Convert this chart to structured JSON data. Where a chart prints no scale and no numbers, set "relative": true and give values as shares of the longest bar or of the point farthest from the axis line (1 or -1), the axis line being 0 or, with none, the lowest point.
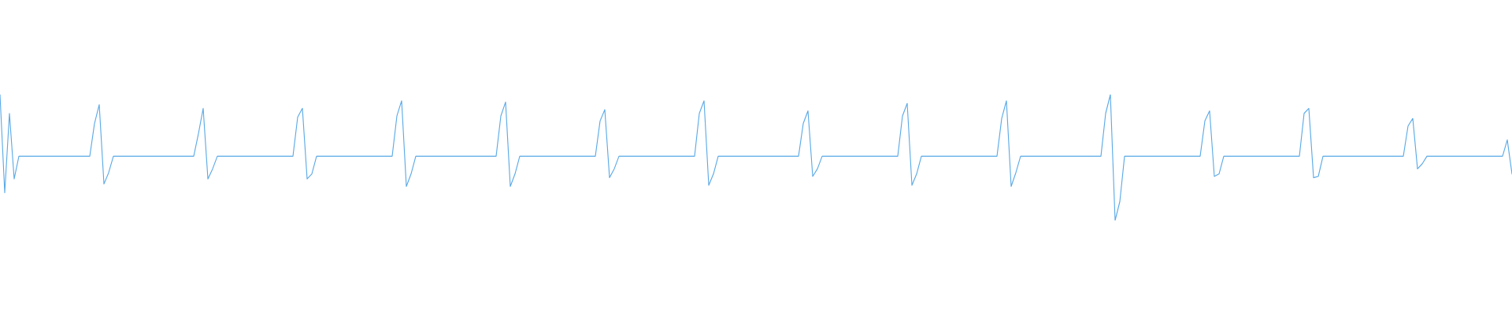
{
  "chart_data": {
    "type": "line",
    "relative": true,
    "color": "#5aa9e6",
    "categories": [
      null,
      null,
      null,
      null,
      null,
      null,
      null,
      null,
      null,
      null,
      null,
      null,
      null,
      null,
      null,
      null,
      null,
      null,
      null,
      null,
      null,
      null,
      null,
      null,
      null,
      null,
      null,
      null,
      null,
      null,
      null,
      null,
      null,
      null,
      null,
      null,
      null,
      null,
      null,
      null,
      null,
      null,
      null,
      null,
      null,
      null,
      null,
      null,
      null,
      null,
      null,
      null,
      null,
      null,
      null,
      null,
      null,
      null,
      null,
      null,
      null,
      null,
      null,
      null,
      null,
      null,
      null,
      null,
      null,
      null,
      null,
      null,
      null,
      null,
      null,
      null,
      null,
      null,
      null,
      null,
      null,
      null,
      null,
      null,
      null,
      null,
      null,
      null,
      null,
      null,
      null,
      null,
      null,
      null,
      null,
      null,
      null,
      null,
      null,
      null,
      null,
      null,
      null,
      null,
      null,
      null,
      null,
      null,
      null,
      null,
      null,
      null,
      null,
      null,
      null,
      null,
      null,
      null,
      null,
      null,
      null,
      null,
      null,
      null,
      null,
      null,
      null,
      null,
      null,
      null,
      null,
      null,
      null,
      null,
      null,
      null,
      null,
      null,
      null,
      null,
      null,
      null,
      null,
      null,
      null,
      null,
      null,
      null,
      null,
      null,
      null,
      null,
      null,
      null,
      null,
      null,
      null,
      null,
      null,
      null,
      null,
      null,
      null,
      null,
      null,
      null,
      null,
      null,
      null,
      null,
      null,
      null,
      null,
      null,
      null,
      null,
      null,
      null,
      null,
      null,
      null,
      null,
      null,
      null,
      null,
      null,
      null,
      null,
      null,
      null,
      null,
      null,
      null,
      null,
      null,
      null,
      null,
      null,
      null,
      null,
      null,
      null,
      null,
      null,
      null,
      null,
      null,
      null,
      null,
      null,
      null,
      null,
      null,
      null,
      null,
      null,
      null,
      null,
      null,
      null,
      null,
      null,
      null,
      null,
      null,
      null,
      null,
      null,
      null,
      null,
      null,
      null,
      null,
      null,
      null,
      null,
      null,
      null,
      null,
      null,
      null,
      null,
      null,
      null,
      null,
      null,
      null,
      null,
      null,
      null,
      null,
      null,
      null,
      null,
      null,
      null,
      null,
      null,
      null,
      null,
      null,
      null,
      null,
      null,
      null,
      null,
      null,
      null,
      null,
      null,
      null,
      null,
      null,
      null,
      null,
      null,
      null,
      null,
      null,
      null,
      null,
      null,
      null,
      null,
      null,
      null,
      null,
      null,
      null,
      null,
      null,
      null,
      null,
      null,
      null,
      null,
      null,
      null,
      null,
      null,
      null,
      null,
      null,
      null,
      null,
      null,
      null,
      null,
      null,
      null,
      null,
      null,
      null,
      null,
      null,
      null,
      null,
      null,
      null,
      null,
      null
    ],
    "values": [
      1.0,
      0.22,
      0.85,
      0.33,
      0.51,
      0.51,
      0.51,
      0.51,
      0.51,
      0.51,
      0.51,
      0.51,
      0.51,
      0.51,
      0.51,
      0.51,
      0.51,
      0.51,
      0.51,
      0.51,
      0.77,
      0.92,
      0.29,
      0.38,
      0.51,
      0.51,
      0.51,
      0.51,
      0.51,
      0.51,
      0.51,
      0.51,
      0.51,
      0.51,
      0.51,
      0.51,
      0.51,
      0.51,
      0.51,
      0.51,
      0.51,
      0.51,
      0.69,
      0.89,
      0.33,
      0.41,
      0.51,
      0.51,
      0.51,
      0.51,
      0.51,
      0.51,
      0.51,
      0.51,
      0.51,
      0.51,
      0.51,
      0.51,
      0.51,
      0.51,
      0.51,
      0.51,
      0.51,
      0.82,
      0.89,
      0.33,
      0.37,
      0.51,
      0.51,
      0.51,
      0.51,
      0.51,
      0.51,
      0.51,
      0.51,
      0.51,
      0.51,
      0.51,
      0.51,
      0.51,
      0.51,
      0.51,
      0.51,
      0.51,
      0.83,
      0.95,
      0.27,
      0.37,
      0.51,
      0.51,
      0.51,
      0.51,
      0.51,
      0.51,
      0.51,
      0.51,
      0.51,
      0.51,
      0.51,
      0.51,
      0.51,
      0.51,
      0.51,
      0.51,
      0.51,
      0.51,
      0.83,
      0.94,
      0.27,
      0.37,
      0.51,
      0.51,
      0.51,
      0.51,
      0.51,
      0.51,
      0.51,
      0.51,
      0.51,
      0.51,
      0.51,
      0.51,
      0.51,
      0.51,
      0.51,
      0.51,
      0.51,
      0.79,
      0.88,
      0.34,
      0.41,
      0.51,
      0.51,
      0.51,
      0.51,
      0.51,
      0.51,
      0.51,
      0.51,
      0.51,
      0.51,
      0.51,
      0.51,
      0.51,
      0.51,
      0.51,
      0.51,
      0.51,
      0.85,
      0.95,
      0.28,
      0.37,
      0.51,
      0.51,
      0.51,
      0.51,
      0.51,
      0.51,
      0.51,
      0.51,
      0.51,
      0.51,
      0.51,
      0.51,
      0.51,
      0.51,
      0.51,
      0.51,
      0.51,
      0.51,
      0.77,
      0.87,
      0.35,
      0.41,
      0.51,
      0.51,
      0.51,
      0.51,
      0.51,
      0.51,
      0.51,
      0.51,
      0.51,
      0.51,
      0.51,
      0.51,
      0.51,
      0.51,
      0.51,
      0.51,
      0.51,
      0.83,
      0.93,
      0.28,
      0.37,
      0.51,
      0.51,
      0.51,
      0.51,
      0.51,
      0.51,
      0.51,
      0.51,
      0.51,
      0.51,
      0.51,
      0.51,
      0.51,
      0.51,
      0.51,
      0.51,
      0.51,
      0.81,
      0.95,
      0.27,
      0.38,
      0.51,
      0.51,
      0.51,
      0.51,
      0.51,
      0.51,
      0.51,
      0.51,
      0.51,
      0.51,
      0.51,
      0.51,
      0.51,
      0.51,
      0.51,
      0.51,
      0.51,
      0.51,
      0.85,
      1.0,
      0.0,
      0.15,
      0.51,
      0.51,
      0.51,
      0.51,
      0.51,
      0.51,
      0.51,
      0.51,
      0.51,
      0.51,
      0.51,
      0.51,
      0.51,
      0.51,
      0.51,
      0.51,
      0.51,
      0.79,
      0.87,
      0.35,
      0.37,
      0.51,
      0.51,
      0.51,
      0.51,
      0.51,
      0.51,
      0.51,
      0.51,
      0.51,
      0.51,
      0.51,
      0.51,
      0.51,
      0.51,
      0.51,
      0.51,
      0.51,
      0.85,
      0.89,
      0.34,
      0.35,
      0.51,
      0.51,
      0.51,
      0.51,
      0.51,
      0.51,
      0.51,
      0.51,
      0.51,
      0.51,
      0.51,
      0.51,
      0.51,
      0.51,
      0.51,
      0.51,
      0.51,
      0.51,
      0.75,
      0.81,
      0.41,
      0.45,
      0.51,
      0.51,
      0.51,
      0.51,
      0.51,
      0.51,
      0.51,
      0.51,
      0.51,
      0.51,
      0.51,
      0.51,
      0.51,
      0.51,
      0.51,
      0.51,
      0.51,
      0.64,
      0.37
    ]
  }
}
